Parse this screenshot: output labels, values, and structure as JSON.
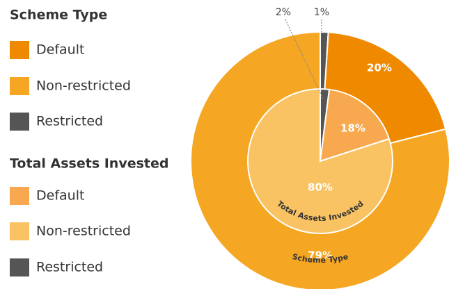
{
  "chart_data": {
    "type": "pie",
    "series": [
      {
        "name": "Scheme Type",
        "categories": [
          "Default",
          "Non-restricted",
          "Restricted"
        ],
        "values": [
          20,
          79,
          1
        ],
        "value_labels": [
          "20%",
          "79%",
          "1%"
        ],
        "colors": [
          "#ef8a00",
          "#f5a623",
          "#555555"
        ]
      },
      {
        "name": "Total Assets Invested",
        "categories": [
          "Default",
          "Non-restricted",
          "Restricted"
        ],
        "values": [
          18,
          80,
          2
        ],
        "value_labels": [
          "18%",
          "80%",
          "2%"
        ],
        "colors": [
          "#f8a94f",
          "#f9c263",
          "#555555"
        ]
      }
    ]
  }
}
